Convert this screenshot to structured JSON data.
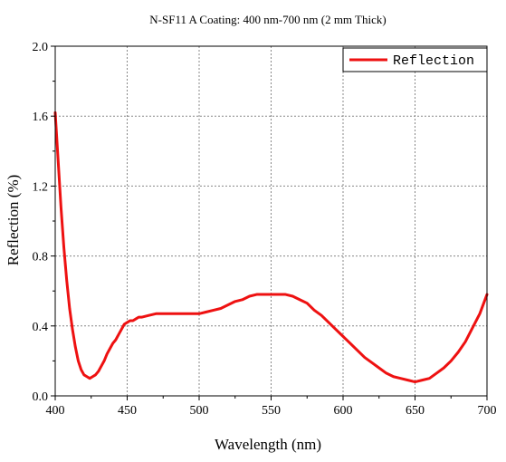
{
  "chart_data": {
    "type": "line",
    "title": "N-SF11 A Coating: 400 nm-700 nm (2 mm Thick)",
    "xlabel": "Wavelength (nm)",
    "ylabel": "Reflection (%)",
    "xlim": [
      400,
      700
    ],
    "ylim": [
      0.0,
      2.0
    ],
    "x_ticks": [
      "400",
      "450",
      "500",
      "550",
      "600",
      "650",
      "700"
    ],
    "y_ticks": [
      "0.0",
      "0.4",
      "0.8",
      "1.2",
      "1.6",
      "2.0"
    ],
    "grid": true,
    "legend_position": "top-right",
    "series": [
      {
        "name": "Reflection",
        "color": "#ee1111",
        "x": [
          400,
          402,
          404,
          406,
          408,
          410,
          412,
          414,
          416,
          418,
          420,
          422,
          424,
          426,
          428,
          430,
          432,
          434,
          436,
          438,
          440,
          442,
          444,
          446,
          448,
          450,
          452,
          454,
          456,
          458,
          460,
          465,
          470,
          475,
          480,
          485,
          490,
          495,
          500,
          505,
          510,
          515,
          520,
          525,
          530,
          535,
          540,
          545,
          550,
          555,
          560,
          565,
          570,
          575,
          580,
          585,
          590,
          595,
          600,
          605,
          610,
          615,
          620,
          625,
          630,
          635,
          640,
          645,
          650,
          655,
          660,
          665,
          670,
          675,
          680,
          685,
          690,
          695,
          700
        ],
        "y": [
          1.62,
          1.35,
          1.08,
          0.85,
          0.66,
          0.5,
          0.38,
          0.28,
          0.2,
          0.15,
          0.12,
          0.11,
          0.1,
          0.11,
          0.12,
          0.14,
          0.17,
          0.2,
          0.24,
          0.27,
          0.3,
          0.32,
          0.35,
          0.38,
          0.41,
          0.42,
          0.43,
          0.43,
          0.44,
          0.45,
          0.45,
          0.46,
          0.47,
          0.47,
          0.47,
          0.47,
          0.47,
          0.47,
          0.47,
          0.48,
          0.49,
          0.5,
          0.52,
          0.54,
          0.55,
          0.57,
          0.58,
          0.58,
          0.58,
          0.58,
          0.58,
          0.57,
          0.55,
          0.53,
          0.49,
          0.46,
          0.42,
          0.38,
          0.34,
          0.3,
          0.26,
          0.22,
          0.19,
          0.16,
          0.13,
          0.11,
          0.1,
          0.09,
          0.08,
          0.09,
          0.1,
          0.13,
          0.16,
          0.2,
          0.25,
          0.31,
          0.39,
          0.47,
          0.58
        ]
      }
    ]
  }
}
